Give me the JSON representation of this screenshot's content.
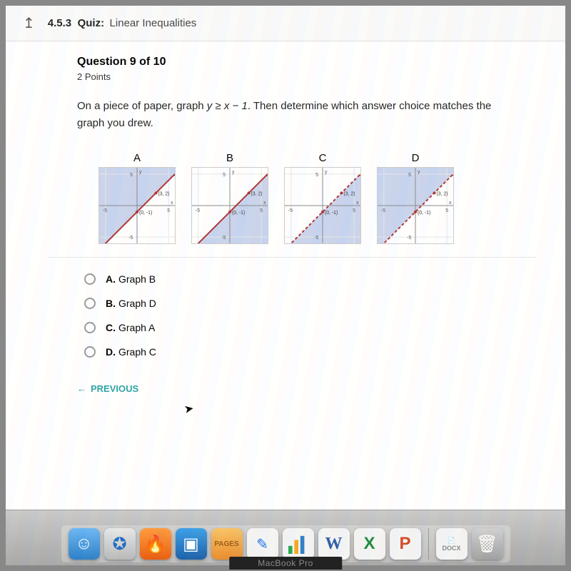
{
  "header": {
    "section_number": "4.5.3",
    "section_type": "Quiz:",
    "section_title": "Linear Inequalities"
  },
  "question": {
    "title": "Question 9 of 10",
    "points": "2 Points",
    "prompt_pre": "On a piece of paper, graph ",
    "prompt_expr": "y ≥ x − 1",
    "prompt_post": ". Then determine which answer choice matches the graph you drew."
  },
  "graphs": {
    "labels": [
      "A",
      "B",
      "C",
      "D"
    ],
    "axis": {
      "min": -6,
      "max": 6,
      "tick_hi": "5",
      "tick_lo": "-5"
    },
    "line_color": "#b03030",
    "shade_color": "#c8d4ee",
    "point_labels": {
      "p1": "(3, 2)",
      "p2": "(0, -1)"
    },
    "items": [
      {
        "label": "A",
        "shade_above": true,
        "solid": true
      },
      {
        "label": "B",
        "shade_above": false,
        "solid": true
      },
      {
        "label": "C",
        "shade_above": false,
        "solid": false
      },
      {
        "label": "D",
        "shade_above": true,
        "solid": false
      }
    ]
  },
  "options": [
    {
      "letter": "A.",
      "text": "Graph B"
    },
    {
      "letter": "B.",
      "text": "Graph D"
    },
    {
      "letter": "C.",
      "text": "Graph A"
    },
    {
      "letter": "D.",
      "text": "Graph C"
    }
  ],
  "nav": {
    "previous": "PREVIOUS"
  },
  "dock": {
    "docs_label": "DOCX"
  },
  "laptop": "MacBook Pro"
}
